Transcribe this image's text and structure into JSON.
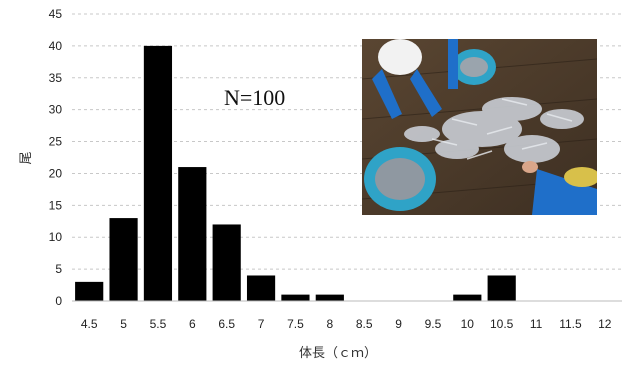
{
  "chart_data": {
    "type": "bar",
    "categories": [
      "4.5",
      "5",
      "5.5",
      "6",
      "6.5",
      "7",
      "7.5",
      "8",
      "8.5",
      "9",
      "9.5",
      "10",
      "10.5",
      "11",
      "11.5",
      "12"
    ],
    "values": [
      3,
      13,
      40,
      21,
      12,
      4,
      1,
      1,
      0,
      0,
      0,
      1,
      4,
      0,
      0,
      0
    ],
    "xlabel": "体長（ｃｍ）",
    "ylabel": "尾",
    "ylim": [
      0,
      45
    ],
    "yticks": [
      0,
      5,
      10,
      15,
      20,
      25,
      30,
      35,
      40,
      45
    ],
    "annotation": "N=100",
    "grid": "horizontal dashed",
    "bar_color": "#000000",
    "legend": "none"
  },
  "photo": {
    "description_icon": "photo-of-sorting-fish-on-deck"
  }
}
